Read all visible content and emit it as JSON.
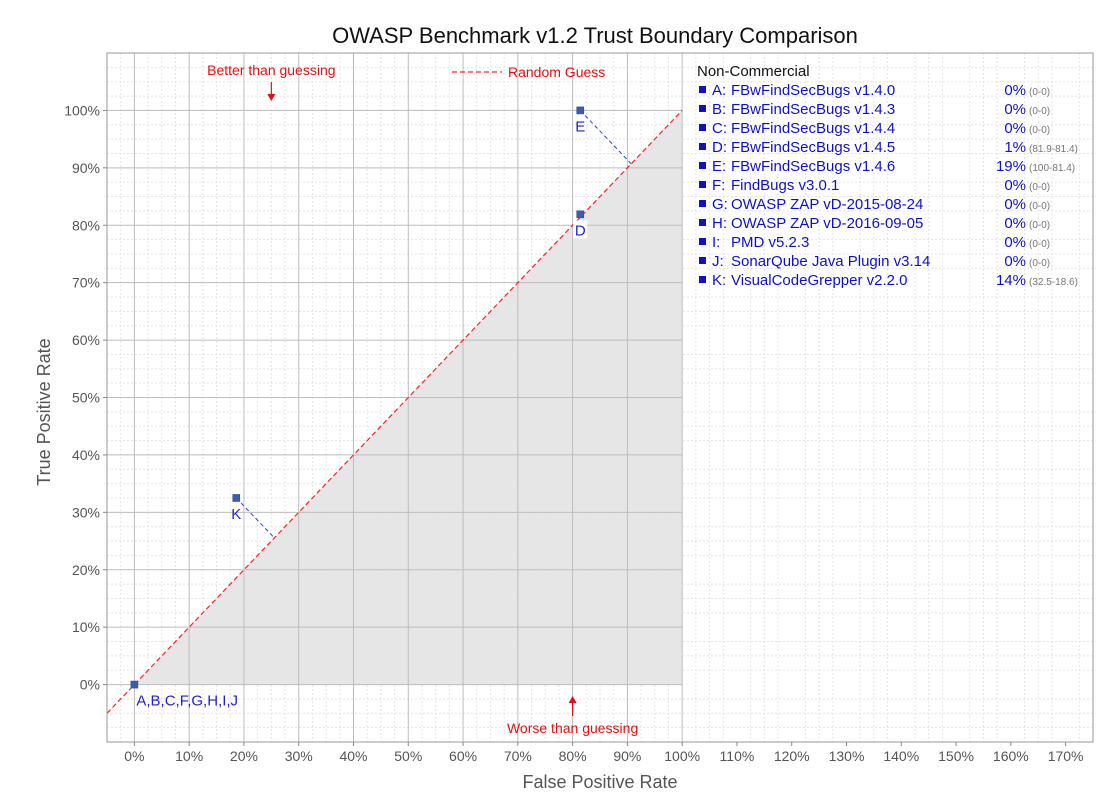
{
  "colors": {
    "text": "#333333",
    "tick": "#555555",
    "plot_bg": "#ffffff",
    "below_diagonal": "#e6e6e6",
    "grid_major": "#bdbdbd",
    "grid_minor": "#e5e5e5",
    "marker": "#3a5fa8",
    "point_label": "#2222cc",
    "connector": "#2f3fd0",
    "guess_line": "#ff2020",
    "annotation": "#e01010",
    "legend_item": "#1010cc",
    "legend_detail": "#777777"
  },
  "chart_data": {
    "type": "scatter",
    "title": "OWASP Benchmark v1.2 Trust Boundary Comparison",
    "xlabel": "False Positive Rate",
    "ylabel": "True Positive Rate",
    "xlim": [
      -5,
      175
    ],
    "ylim": [
      -10,
      110
    ],
    "x_ticks": [
      0,
      10,
      20,
      30,
      40,
      50,
      60,
      70,
      80,
      90,
      100,
      110,
      120,
      130,
      140,
      150,
      160,
      170
    ],
    "x_tick_labels": [
      "0%",
      "10%",
      "20%",
      "30%",
      "40%",
      "50%",
      "60%",
      "70%",
      "80%",
      "90%",
      "100%",
      "110%",
      "120%",
      "130%",
      "140%",
      "150%",
      "160%",
      "170%"
    ],
    "y_ticks": [
      0,
      10,
      20,
      30,
      40,
      50,
      60,
      70,
      80,
      90,
      100
    ],
    "y_tick_labels": [
      "0%",
      "10%",
      "20%",
      "30%",
      "40%",
      "50%",
      "60%",
      "70%",
      "80%",
      "90%",
      "100%"
    ],
    "grid": true,
    "guess_line_label": "Random Guess",
    "annotations": {
      "better": "Better than guessing",
      "worse": "Worse than guessing"
    },
    "points": [
      {
        "label": "A,B,C,F,G,H,I,J",
        "x": 0,
        "y": 0
      },
      {
        "label": "D",
        "x": 81.4,
        "y": 81.9
      },
      {
        "label": "E",
        "x": 81.4,
        "y": 100
      },
      {
        "label": "K",
        "x": 18.6,
        "y": 32.5
      }
    ],
    "legend": {
      "position": "right",
      "heading": "Non-Commercial",
      "items": [
        {
          "key": "A:",
          "name": "FBwFindSecBugs v1.4.0",
          "score": "0%",
          "detail": "(0-0)"
        },
        {
          "key": "B:",
          "name": "FBwFindSecBugs v1.4.3",
          "score": "0%",
          "detail": "(0-0)"
        },
        {
          "key": "C:",
          "name": "FBwFindSecBugs v1.4.4",
          "score": "0%",
          "detail": "(0-0)"
        },
        {
          "key": "D:",
          "name": "FBwFindSecBugs v1.4.5",
          "score": "1%",
          "detail": "(81.9-81.4)"
        },
        {
          "key": "E:",
          "name": "FBwFindSecBugs v1.4.6",
          "score": "19%",
          "detail": "(100-81.4)"
        },
        {
          "key": "F:",
          "name": "FindBugs v3.0.1",
          "score": "0%",
          "detail": "(0-0)"
        },
        {
          "key": "G:",
          "name": "OWASP ZAP vD-2015-08-24",
          "score": "0%",
          "detail": "(0-0)"
        },
        {
          "key": "H:",
          "name": "OWASP ZAP vD-2016-09-05",
          "score": "0%",
          "detail": "(0-0)"
        },
        {
          "key": "I:",
          "name": "PMD v5.2.3",
          "score": "0%",
          "detail": "(0-0)"
        },
        {
          "key": "J:",
          "name": "SonarQube Java Plugin v3.14",
          "score": "0%",
          "detail": "(0-0)"
        },
        {
          "key": "K:",
          "name": "VisualCodeGrepper v2.2.0",
          "score": "14%",
          "detail": "(32.5-18.6)"
        }
      ]
    }
  }
}
